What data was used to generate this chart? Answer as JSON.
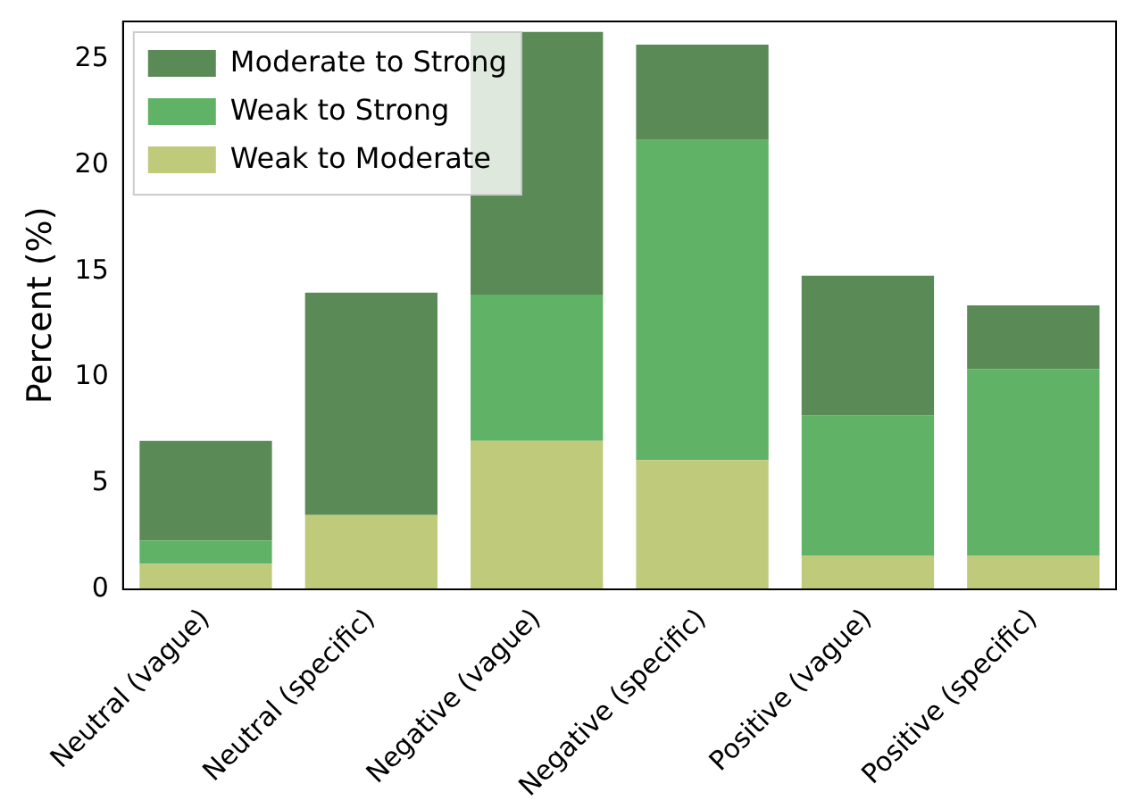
{
  "chart_data": {
    "type": "bar",
    "stacked": true,
    "ylabel": "Percent (%)",
    "categories": [
      "Neutral (vague)",
      "Neutral (specific)",
      "Negative (vague)",
      "Negative (specific)",
      "Positive (vague)",
      "Positive (specific)"
    ],
    "series": [
      {
        "name": "Weak to Moderate",
        "color": "#bfca7a",
        "values": [
          1.2,
          3.5,
          7.0,
          6.1,
          1.6,
          1.6
        ]
      },
      {
        "name": "Weak to Strong",
        "color": "#5fb266",
        "values": [
          1.1,
          0,
          6.9,
          15.1,
          6.6,
          8.8
        ]
      },
      {
        "name": "Moderate to Strong",
        "color": "#5a8a55",
        "values": [
          4.7,
          10.5,
          12.4,
          4.5,
          6.6,
          3.0
        ]
      }
    ],
    "ylim": [
      0,
      26.8
    ],
    "yticks": [
      0,
      5,
      10,
      15,
      20,
      25
    ],
    "grid": false,
    "legend": "top left"
  }
}
